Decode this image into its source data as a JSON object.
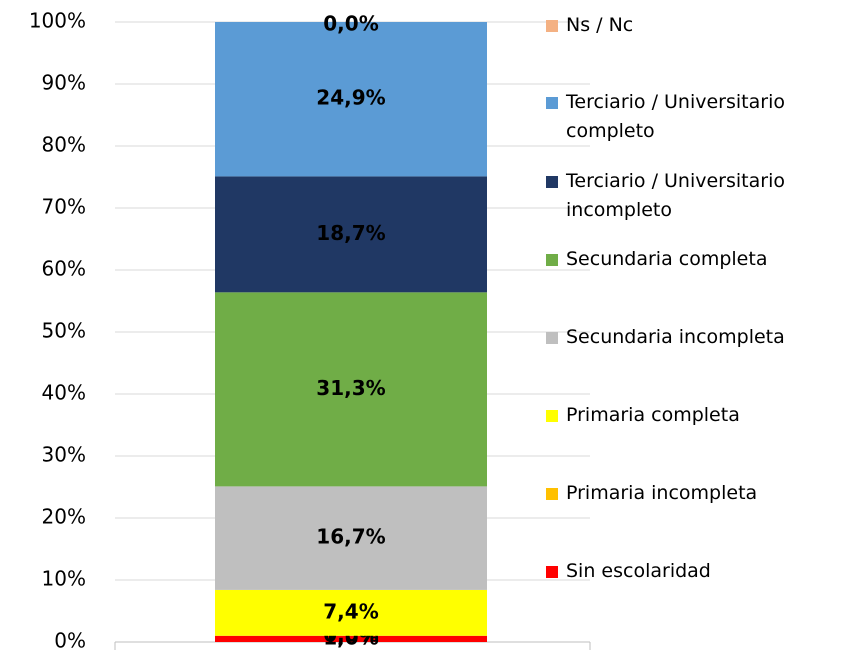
{
  "chart_data": {
    "type": "stacked_bar",
    "categories": [
      null
    ],
    "series": [
      {
        "name": "Sin escolaridad",
        "color": "#ff0000",
        "values": [
          1.0
        ],
        "value_labels": [
          "1,0%"
        ]
      },
      {
        "name": "Primaria incompleta",
        "color": "#ffc000",
        "values": [
          0.0
        ],
        "value_labels": [
          "0,0%"
        ]
      },
      {
        "name": "Primaria completa",
        "color": "#ffff00",
        "values": [
          7.4
        ],
        "value_labels": [
          "7,4%"
        ]
      },
      {
        "name": "Secundaria incompleta",
        "color": "#bfbfbf",
        "values": [
          16.7
        ],
        "value_labels": [
          "16,7%"
        ]
      },
      {
        "name": "Secundaria completa",
        "color": "#70ad47",
        "values": [
          31.3
        ],
        "value_labels": [
          "31,3%"
        ]
      },
      {
        "name": "Terciario / Universitario incompleto",
        "color": "#203864",
        "values": [
          18.7
        ],
        "value_labels": [
          "18,7%"
        ]
      },
      {
        "name": "Terciario / Universitario completo",
        "color": "#5b9bd5",
        "values": [
          24.9
        ],
        "value_labels": [
          "24,9%"
        ]
      },
      {
        "name": "Ns / Nc",
        "color": "#f4b183",
        "values": [
          0.0
        ],
        "value_labels": [
          "0,0%"
        ]
      }
    ],
    "ylim": [
      0,
      100
    ],
    "yticks": [
      {
        "value": 0,
        "label": "0%"
      },
      {
        "value": 10,
        "label": "10%"
      },
      {
        "value": 20,
        "label": "20%"
      },
      {
        "value": 30,
        "label": "30%"
      },
      {
        "value": 40,
        "label": "40%"
      },
      {
        "value": 50,
        "label": "50%"
      },
      {
        "value": 60,
        "label": "60%"
      },
      {
        "value": 70,
        "label": "70%"
      },
      {
        "value": 80,
        "label": "80%"
      },
      {
        "value": 90,
        "label": "90%"
      },
      {
        "value": 100,
        "label": "100%"
      }
    ],
    "grid": true,
    "legend": "right"
  }
}
